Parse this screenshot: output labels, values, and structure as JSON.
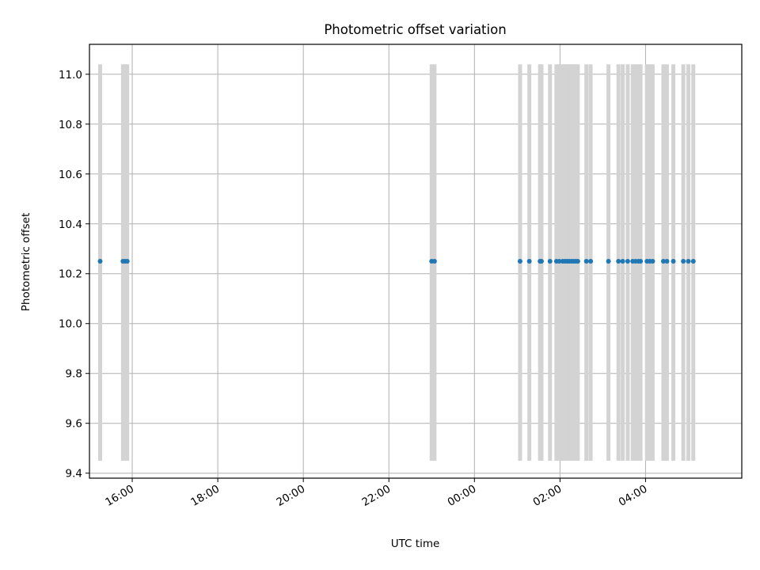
{
  "chart_data": {
    "type": "scatter",
    "title": "Photometric offset variation",
    "xlabel": "UTC time",
    "ylabel": "Photometric offset",
    "x_axis": {
      "kind": "time",
      "range": [
        "15:00",
        "06:15"
      ],
      "ticks": [
        {
          "time": "16:00",
          "label": "16:00"
        },
        {
          "time": "18:00",
          "label": "18:00"
        },
        {
          "time": "20:00",
          "label": "20:00"
        },
        {
          "time": "22:00",
          "label": "22:00"
        },
        {
          "time": "00:00",
          "label": "00:00"
        },
        {
          "time": "02:00",
          "label": "02:00"
        },
        {
          "time": "04:00",
          "label": "04:00"
        }
      ]
    },
    "y_axis": {
      "range": [
        9.38,
        11.12
      ],
      "ticks": [
        9.4,
        9.6,
        9.8,
        10.0,
        10.2,
        10.4,
        10.6,
        10.8,
        11.0
      ]
    },
    "grid": true,
    "series": [
      {
        "kind": "points",
        "color": "#1f77b4",
        "points": [
          {
            "x": "15:15",
            "y": 10.25
          },
          {
            "x": "15:47",
            "y": 10.25
          },
          {
            "x": "15:50",
            "y": 10.25
          },
          {
            "x": "15:53",
            "y": 10.25
          },
          {
            "x": "23:00",
            "y": 10.25
          },
          {
            "x": "23:04",
            "y": 10.25
          },
          {
            "x": "01:04",
            "y": 10.25
          },
          {
            "x": "01:17",
            "y": 10.25
          },
          {
            "x": "01:32",
            "y": 10.25
          },
          {
            "x": "01:34",
            "y": 10.25
          },
          {
            "x": "01:46",
            "y": 10.25
          },
          {
            "x": "01:55",
            "y": 10.25
          },
          {
            "x": "01:59",
            "y": 10.25
          },
          {
            "x": "02:04",
            "y": 10.25
          },
          {
            "x": "02:07",
            "y": 10.25
          },
          {
            "x": "02:10",
            "y": 10.25
          },
          {
            "x": "02:13",
            "y": 10.25
          },
          {
            "x": "02:16",
            "y": 10.25
          },
          {
            "x": "02:19",
            "y": 10.25
          },
          {
            "x": "02:22",
            "y": 10.25
          },
          {
            "x": "02:25",
            "y": 10.25
          },
          {
            "x": "02:37",
            "y": 10.25
          },
          {
            "x": "02:43",
            "y": 10.25
          },
          {
            "x": "03:08",
            "y": 10.25
          },
          {
            "x": "03:22",
            "y": 10.25
          },
          {
            "x": "03:28",
            "y": 10.25
          },
          {
            "x": "03:35",
            "y": 10.25
          },
          {
            "x": "03:42",
            "y": 10.25
          },
          {
            "x": "03:46",
            "y": 10.25
          },
          {
            "x": "03:50",
            "y": 10.25
          },
          {
            "x": "03:53",
            "y": 10.25
          },
          {
            "x": "04:02",
            "y": 10.25
          },
          {
            "x": "04:06",
            "y": 10.25
          },
          {
            "x": "04:10",
            "y": 10.25
          },
          {
            "x": "04:25",
            "y": 10.25
          },
          {
            "x": "04:30",
            "y": 10.25
          },
          {
            "x": "04:39",
            "y": 10.25
          },
          {
            "x": "04:53",
            "y": 10.25
          },
          {
            "x": "05:00",
            "y": 10.25
          },
          {
            "x": "05:07",
            "y": 10.25
          }
        ]
      },
      {
        "kind": "error_bars",
        "color": "#d3d3d3",
        "y_low": 9.45,
        "y_high": 11.04,
        "x": [
          "15:15",
          "15:47",
          "15:50",
          "15:53",
          "23:00",
          "23:04",
          "01:04",
          "01:17",
          "01:32",
          "01:34",
          "01:46",
          "01:55",
          "01:59",
          "02:04",
          "02:07",
          "02:10",
          "02:13",
          "02:16",
          "02:19",
          "02:22",
          "02:25",
          "02:37",
          "02:43",
          "03:08",
          "03:22",
          "03:28",
          "03:35",
          "03:42",
          "03:46",
          "03:50",
          "03:53",
          "04:02",
          "04:06",
          "04:10",
          "04:25",
          "04:30",
          "04:39",
          "04:53",
          "05:00",
          "05:07"
        ]
      }
    ]
  }
}
